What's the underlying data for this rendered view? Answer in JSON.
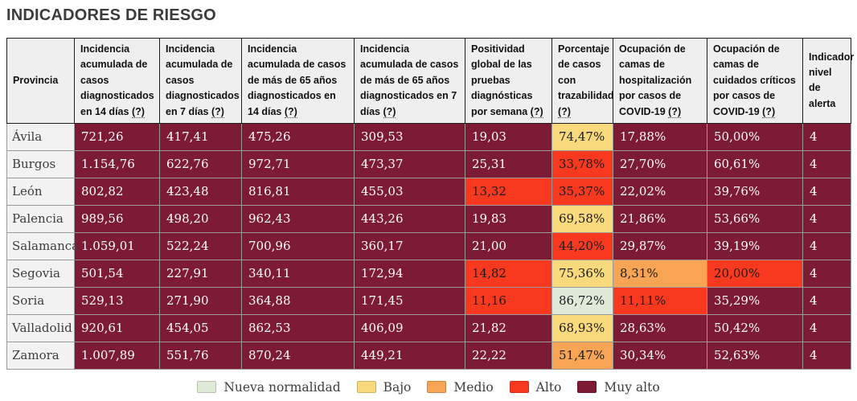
{
  "page": {
    "title": "INDICADORES DE RIESGO"
  },
  "colors": {
    "nueva_normalidad": "#e0ead8",
    "bajo": "#f8d97c",
    "medio": "#f7a455",
    "alto": "#f8391f",
    "muy_alto": "#7d1a34",
    "text_on_dark": "#ffffff",
    "text_on_light": "#1a1a1a"
  },
  "table": {
    "province_header": "Provincia",
    "columns": [
      {
        "label": "Incidencia acumulada de casos diagnosticados en 14 días",
        "help": "(?)"
      },
      {
        "label": "Incidencia acumulada de casos diagnosticados en 7 días",
        "help": "(?)"
      },
      {
        "label": "Incidencia acumulada de casos de más de 65 años diagnosticados en 14 días",
        "help": "(?)"
      },
      {
        "label": "Incidencia acumulada de casos de más de 65 años diagnosticados en 7 días",
        "help": "(?)"
      },
      {
        "label": "Positividad global de las pruebas diagnósticas por semana",
        "help": "(?)"
      },
      {
        "label": "Porcentaje de casos con trazabilidad",
        "help": "(?)"
      },
      {
        "label": "Ocupación de camas de hospitalización por casos de COVID-19",
        "help": "(?)"
      },
      {
        "label": "Ocupación de camas de cuidados críticos por casos de COVID-19",
        "help": "(?)"
      },
      {
        "label": "Indicador nivel de alerta",
        "help": ""
      }
    ],
    "rows": [
      {
        "province": "Ávila",
        "cells": [
          {
            "value": "721,26",
            "level": "muy_alto"
          },
          {
            "value": "417,41",
            "level": "muy_alto"
          },
          {
            "value": "475,26",
            "level": "muy_alto"
          },
          {
            "value": "309,53",
            "level": "muy_alto"
          },
          {
            "value": "19,03",
            "level": "muy_alto"
          },
          {
            "value": "74,47%",
            "level": "bajo"
          },
          {
            "value": "17,88%",
            "level": "muy_alto"
          },
          {
            "value": "50,00%",
            "level": "muy_alto"
          },
          {
            "value": "4",
            "level": "muy_alto"
          }
        ]
      },
      {
        "province": "Burgos",
        "cells": [
          {
            "value": "1.154,76",
            "level": "muy_alto"
          },
          {
            "value": "622,76",
            "level": "muy_alto"
          },
          {
            "value": "972,71",
            "level": "muy_alto"
          },
          {
            "value": "473,37",
            "level": "muy_alto"
          },
          {
            "value": "25,31",
            "level": "muy_alto"
          },
          {
            "value": "33,78%",
            "level": "alto"
          },
          {
            "value": "27,70%",
            "level": "muy_alto"
          },
          {
            "value": "60,61%",
            "level": "muy_alto"
          },
          {
            "value": "4",
            "level": "muy_alto"
          }
        ]
      },
      {
        "province": "León",
        "cells": [
          {
            "value": "802,82",
            "level": "muy_alto"
          },
          {
            "value": "423,48",
            "level": "muy_alto"
          },
          {
            "value": "816,81",
            "level": "muy_alto"
          },
          {
            "value": "455,03",
            "level": "muy_alto"
          },
          {
            "value": "13,32",
            "level": "alto"
          },
          {
            "value": "35,37%",
            "level": "alto"
          },
          {
            "value": "22,02%",
            "level": "muy_alto"
          },
          {
            "value": "39,76%",
            "level": "muy_alto"
          },
          {
            "value": "4",
            "level": "muy_alto"
          }
        ]
      },
      {
        "province": "Palencia",
        "cells": [
          {
            "value": "989,56",
            "level": "muy_alto"
          },
          {
            "value": "498,20",
            "level": "muy_alto"
          },
          {
            "value": "962,43",
            "level": "muy_alto"
          },
          {
            "value": "443,26",
            "level": "muy_alto"
          },
          {
            "value": "19,83",
            "level": "muy_alto"
          },
          {
            "value": "69,58%",
            "level": "bajo"
          },
          {
            "value": "21,86%",
            "level": "muy_alto"
          },
          {
            "value": "53,66%",
            "level": "muy_alto"
          },
          {
            "value": "4",
            "level": "muy_alto"
          }
        ]
      },
      {
        "province": "Salamanca",
        "cells": [
          {
            "value": "1.059,01",
            "level": "muy_alto"
          },
          {
            "value": "522,24",
            "level": "muy_alto"
          },
          {
            "value": "700,96",
            "level": "muy_alto"
          },
          {
            "value": "360,17",
            "level": "muy_alto"
          },
          {
            "value": "21,00",
            "level": "muy_alto"
          },
          {
            "value": "44,20%",
            "level": "alto"
          },
          {
            "value": "29,87%",
            "level": "muy_alto"
          },
          {
            "value": "39,19%",
            "level": "muy_alto"
          },
          {
            "value": "4",
            "level": "muy_alto"
          }
        ]
      },
      {
        "province": "Segovia",
        "cells": [
          {
            "value": "501,54",
            "level": "muy_alto"
          },
          {
            "value": "227,91",
            "level": "muy_alto"
          },
          {
            "value": "340,11",
            "level": "muy_alto"
          },
          {
            "value": "172,94",
            "level": "muy_alto"
          },
          {
            "value": "14,82",
            "level": "alto"
          },
          {
            "value": "75,36%",
            "level": "bajo"
          },
          {
            "value": "8,31%",
            "level": "medio"
          },
          {
            "value": "20,00%",
            "level": "alto"
          },
          {
            "value": "4",
            "level": "muy_alto"
          }
        ]
      },
      {
        "province": "Soria",
        "cells": [
          {
            "value": "529,13",
            "level": "muy_alto"
          },
          {
            "value": "271,90",
            "level": "muy_alto"
          },
          {
            "value": "364,88",
            "level": "muy_alto"
          },
          {
            "value": "171,45",
            "level": "muy_alto"
          },
          {
            "value": "11,16",
            "level": "alto"
          },
          {
            "value": "86,72%",
            "level": "nueva_normalidad"
          },
          {
            "value": "11,11%",
            "level": "alto"
          },
          {
            "value": "35,29%",
            "level": "muy_alto"
          },
          {
            "value": "4",
            "level": "muy_alto"
          }
        ]
      },
      {
        "province": "Valladolid",
        "cells": [
          {
            "value": "920,61",
            "level": "muy_alto"
          },
          {
            "value": "454,05",
            "level": "muy_alto"
          },
          {
            "value": "862,53",
            "level": "muy_alto"
          },
          {
            "value": "406,09",
            "level": "muy_alto"
          },
          {
            "value": "21,82",
            "level": "muy_alto"
          },
          {
            "value": "68,93%",
            "level": "bajo"
          },
          {
            "value": "28,63%",
            "level": "muy_alto"
          },
          {
            "value": "50,42%",
            "level": "muy_alto"
          },
          {
            "value": "4",
            "level": "muy_alto"
          }
        ]
      },
      {
        "province": "Zamora",
        "cells": [
          {
            "value": "1.007,89",
            "level": "muy_alto"
          },
          {
            "value": "551,76",
            "level": "muy_alto"
          },
          {
            "value": "870,24",
            "level": "muy_alto"
          },
          {
            "value": "449,21",
            "level": "muy_alto"
          },
          {
            "value": "22,22",
            "level": "muy_alto"
          },
          {
            "value": "51,47%",
            "level": "medio"
          },
          {
            "value": "30,34%",
            "level": "muy_alto"
          },
          {
            "value": "52,63%",
            "level": "muy_alto"
          },
          {
            "value": "4",
            "level": "muy_alto"
          }
        ]
      }
    ]
  },
  "legend": {
    "items": [
      {
        "label": "Nueva normalidad",
        "level": "nueva_normalidad"
      },
      {
        "label": "Bajo",
        "level": "bajo"
      },
      {
        "label": "Medio",
        "level": "medio"
      },
      {
        "label": "Alto",
        "level": "alto"
      },
      {
        "label": "Muy alto",
        "level": "muy_alto"
      }
    ]
  }
}
